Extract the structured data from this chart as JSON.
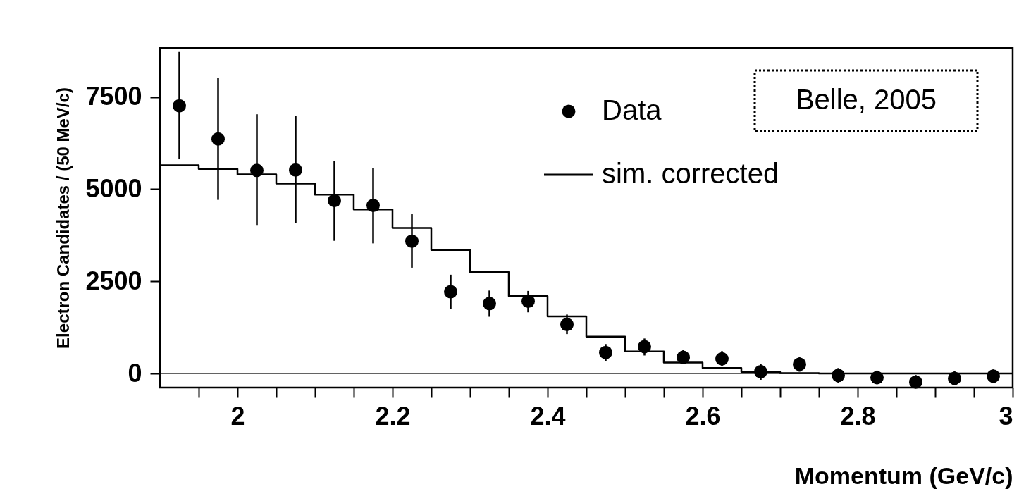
{
  "chart_data": {
    "type": "scatter",
    "xlabel": "Momentum (GeV/c)",
    "ylabel": "Electron Candidates / (50 MeV/c)",
    "xlim": [
      1.9,
      3.0
    ],
    "ylim": [
      -380,
      8830
    ],
    "xticks": [
      {
        "value": 1.95,
        "label": null
      },
      2,
      {
        "value": 2.05,
        "label": null
      },
      {
        "value": 2.1,
        "label": null
      },
      {
        "value": 2.15,
        "label": null
      },
      2.2,
      {
        "value": 2.25,
        "label": null
      },
      {
        "value": 2.3,
        "label": null
      },
      {
        "value": 2.35,
        "label": null
      },
      2.4,
      {
        "value": 2.45,
        "label": null
      },
      {
        "value": 2.5,
        "label": null
      },
      {
        "value": 2.55,
        "label": null
      },
      2.6,
      {
        "value": 2.65,
        "label": null
      },
      {
        "value": 2.7,
        "label": null
      },
      {
        "value": 2.75,
        "label": null
      },
      2.8,
      {
        "value": 2.85,
        "label": null
      },
      {
        "value": 2.9,
        "label": null
      },
      {
        "value": 2.95,
        "label": null
      },
      3
    ],
    "yticks": [
      0,
      2500,
      5000,
      7500
    ],
    "legend": "top right",
    "marker": "circle",
    "grid": false,
    "annotations": [
      "Belle, 2005"
    ],
    "ref_lines": [
      {
        "axis": "y",
        "value": 0,
        "color": "#000000"
      }
    ],
    "series": [
      {
        "name": "Data",
        "color": "#000000",
        "x": [
          1.925,
          1.975,
          2.025,
          2.075,
          2.125,
          2.175,
          2.225,
          2.275,
          2.325,
          2.375,
          2.425,
          2.475,
          2.525,
          2.575,
          2.625,
          2.675,
          2.725,
          2.775,
          2.825,
          2.875,
          2.925,
          2.975
        ],
        "values": [
          7260,
          6360,
          5510,
          5520,
          4690,
          4560,
          3590,
          2220,
          1900,
          1960,
          1330,
          570,
          730,
          440,
          400,
          50,
          250,
          -50,
          -110,
          -230,
          -130,
          -70
        ],
        "errors": [
          [
            5810,
            8720
          ],
          [
            4710,
            8020
          ],
          [
            4010,
            7030
          ],
          [
            4080,
            6980
          ],
          [
            3600,
            5760
          ],
          [
            3530,
            5580
          ],
          [
            2870,
            4320
          ],
          [
            1750,
            2680
          ],
          [
            1540,
            2250
          ],
          [
            1660,
            2240
          ],
          [
            1070,
            1600
          ],
          [
            330,
            800
          ],
          [
            490,
            950
          ],
          [
            250,
            650
          ],
          [
            200,
            610
          ],
          [
            -170,
            270
          ],
          [
            50,
            450
          ],
          [
            -260,
            150
          ],
          [
            -290,
            80
          ],
          [
            -370,
            -40
          ],
          [
            -300,
            60
          ],
          [
            -250,
            110
          ]
        ]
      },
      {
        "name": "sim. corrected",
        "type": "histogram",
        "color": "#000000",
        "bins": [
          1.9,
          1.95,
          2.0,
          2.05,
          2.1,
          2.15,
          2.2,
          2.25,
          2.3,
          2.35,
          2.4,
          2.45,
          2.5,
          2.55,
          2.6,
          2.65,
          2.7,
          2.75,
          2.8,
          2.85,
          2.9,
          2.95,
          3.0
        ],
        "values": [
          5650,
          5550,
          5400,
          5150,
          4850,
          4450,
          3950,
          3350,
          2750,
          2100,
          1550,
          1000,
          600,
          300,
          150,
          40,
          10,
          0,
          0,
          0,
          0,
          0
        ]
      }
    ]
  }
}
